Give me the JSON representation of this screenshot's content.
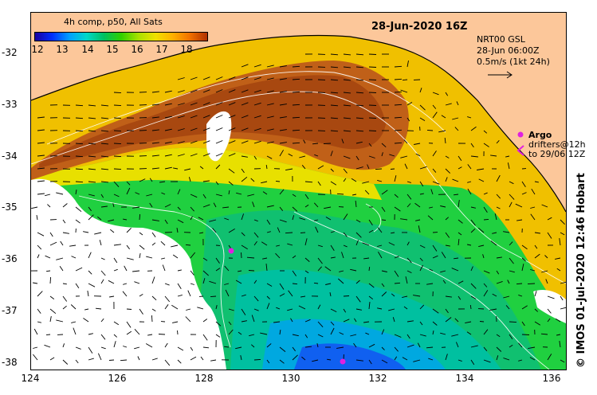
{
  "title": "28-Jun-2020 16Z",
  "colorbar": {
    "title": "4h comp, p50, All Sats",
    "ticks": [
      "12",
      "13",
      "14",
      "15",
      "16",
      "17",
      "18"
    ],
    "colors": [
      "#1a00a0",
      "#0030ff",
      "#00a0ff",
      "#00d8c8",
      "#00c060",
      "#30d000",
      "#a8e000",
      "#f0e000",
      "#ffb000",
      "#f07000",
      "#b03000"
    ]
  },
  "current_info": {
    "model": "NRT00 GSL",
    "time": "28-Jun 06:00Z",
    "scale": "0.5m/s (1kt 24h)"
  },
  "legend": {
    "argo": "Argo",
    "drifters_line1": "drifters@12h",
    "drifters_line2": "to 29/06 12Z"
  },
  "credit": "© IMOS 01-Jul-2020 12:46 Hobart",
  "axes": {
    "lon_ticks": [
      "124",
      "126",
      "128",
      "130",
      "132",
      "134",
      "136"
    ],
    "lat_ticks": [
      "-32",
      "-33",
      "-34",
      "-35",
      "-36",
      "-37",
      "-38"
    ]
  },
  "colors": {
    "land": "#fcc79a",
    "no_data": "#ffffff",
    "arrow": "#000000",
    "argo_marker": "#e020e0"
  }
}
